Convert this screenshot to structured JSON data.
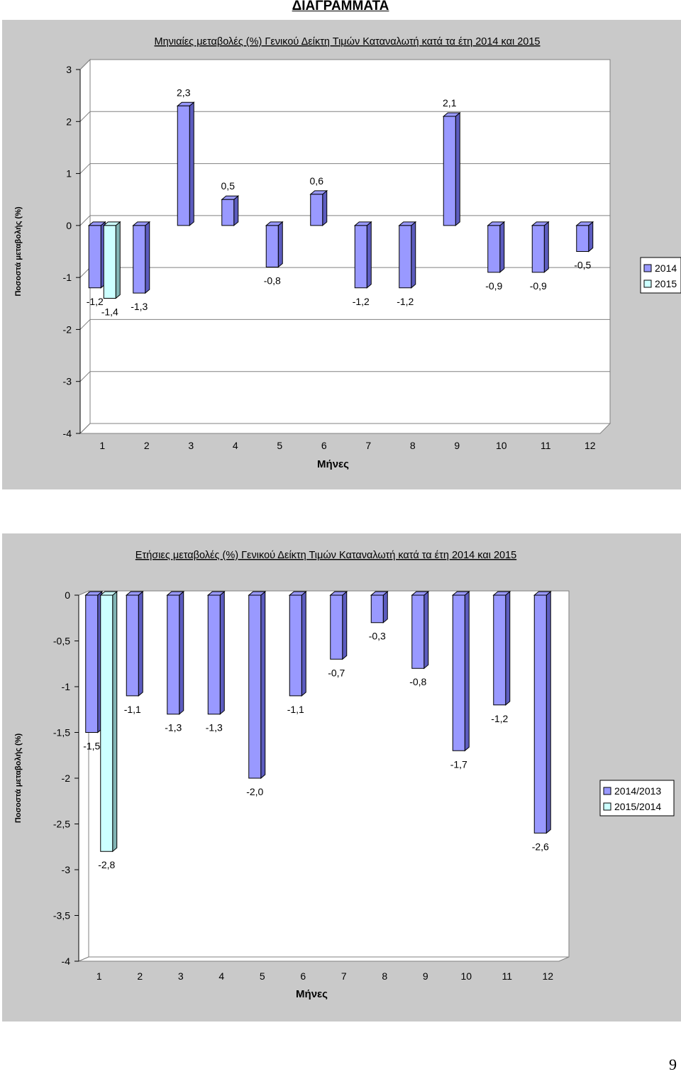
{
  "page": {
    "heading": "ΔΙΑΓΡΑΜΜΑΤΑ",
    "page_number": "9"
  },
  "colors": {
    "frame": "#c9c9c9",
    "wall": "#ffffff",
    "bar_series_1_front": "#9999ff",
    "bar_series_1_side": "#5c5cbf",
    "bar_series_2_front": "#ccffff",
    "bar_series_2_side": "#80b3b3",
    "edge": "#000000"
  },
  "chart_data": [
    {
      "type": "bar",
      "style": "3d-clustered-column",
      "title": "Μηνιαίες μεταβολές (%) Γενικού Δείκτη Τιμών Καταναλωτή κατά τα έτη 2014 και 2015",
      "xlabel": "Μήνες",
      "ylabel": "Ποσοστά μεταβολής (%)",
      "ylim": [
        -4,
        3
      ],
      "yticks": [
        "-4",
        "-3",
        "-2",
        "-1",
        "0",
        "1",
        "2",
        "3"
      ],
      "grid": true,
      "legend": "right",
      "categories": [
        "1",
        "2",
        "3",
        "4",
        "5",
        "6",
        "7",
        "8",
        "9",
        "10",
        "11",
        "12"
      ],
      "series": [
        {
          "name": "2014",
          "values": [
            -1.2,
            -1.3,
            2.3,
            0.5,
            -0.8,
            0.6,
            -1.2,
            -1.2,
            2.1,
            -0.9,
            -0.9,
            -0.5
          ],
          "labels": [
            "-1,2",
            "-1,3",
            "2,3",
            "0,5",
            "-0,8",
            "0,6",
            "-1,2",
            "-1,2",
            "2,1",
            "-0,9",
            "-0,9",
            "-0,5"
          ]
        },
        {
          "name": "2015",
          "values": [
            -1.4,
            null,
            null,
            null,
            null,
            null,
            null,
            null,
            null,
            null,
            null,
            null
          ],
          "labels": [
            "-1,4",
            "",
            "",
            "",
            "",
            "",
            "",
            "",
            "",
            "",
            "",
            ""
          ]
        }
      ]
    },
    {
      "type": "bar",
      "style": "3d-clustered-column",
      "title": "Ετήσιες μεταβολές (%) Γενικού Δείκτη Τιμών Καταναλωτή κατά τα έτη 2014 και 2015",
      "xlabel": "Μήνες",
      "ylabel": "Ποσοστά μεταβολής (%)",
      "ylim": [
        -4,
        0
      ],
      "yticks": [
        "-4",
        "-3,5",
        "-3",
        "-2,5",
        "-2",
        "-1,5",
        "-1",
        "-0,5",
        "0"
      ],
      "grid": false,
      "legend": "right",
      "categories": [
        "1",
        "2",
        "3",
        "4",
        "5",
        "6",
        "7",
        "8",
        "9",
        "10",
        "11",
        "12"
      ],
      "series": [
        {
          "name": "2014/2013",
          "values": [
            -1.5,
            -1.1,
            -1.3,
            -1.3,
            -2.0,
            -1.1,
            -0.7,
            -0.3,
            -0.8,
            -1.7,
            -1.2,
            -2.6
          ],
          "labels": [
            "-1,5",
            "-1,1",
            "-1,3",
            "-1,3",
            "-2,0",
            "-1,1",
            "-0,7",
            "-0,3",
            "-0,8",
            "-1,7",
            "-1,2",
            "-2,6"
          ]
        },
        {
          "name": "2015/2014",
          "values": [
            -2.8,
            null,
            null,
            null,
            null,
            null,
            null,
            null,
            null,
            null,
            null,
            null
          ],
          "labels": [
            "-2,8",
            "",
            "",
            "",
            "",
            "",
            "",
            "",
            "",
            "",
            "",
            ""
          ]
        }
      ]
    }
  ]
}
